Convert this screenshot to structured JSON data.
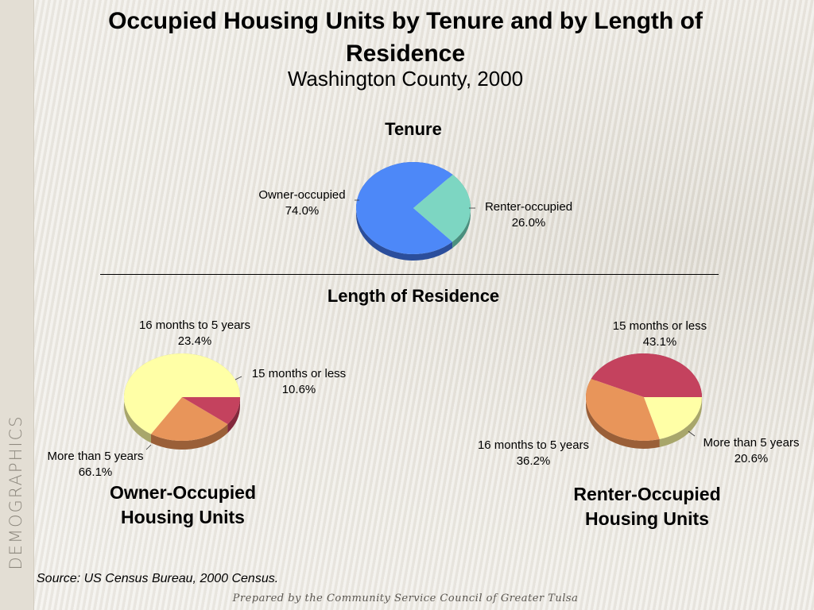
{
  "title": "Occupied Housing Units by Tenure and by Length of Residence",
  "subtitle": "Washington County, 2000",
  "side_label": "DEMOGRAPHICS",
  "source": "Source:  US Census Bureau, 2000 Census.",
  "footer": "Prepared by the Community Service Council of Greater Tulsa",
  "chart_data": [
    {
      "type": "pie",
      "title": "Tenure",
      "categories": [
        "Owner-occupied",
        "Renter-occupied"
      ],
      "values": [
        74.0,
        26.0
      ],
      "value_labels": [
        "74.0%",
        "26.0%"
      ],
      "colors": [
        "#4d88f8",
        "#7dd6c2"
      ],
      "side_colors": [
        "#2b4e9c",
        "#4a8f7e"
      ]
    },
    {
      "type": "pie",
      "section_title": "Length of Residence",
      "title": "Owner-Occupied Housing Units",
      "categories": [
        "More than 5 years",
        "16 months to 5 years",
        "15 months or less"
      ],
      "values": [
        66.1,
        23.4,
        10.6
      ],
      "value_labels": [
        "66.1%",
        "23.4%",
        "10.6%"
      ],
      "colors": [
        "#ffffa6",
        "#e8955a",
        "#c4425e"
      ],
      "side_colors": [
        "#a8a66b",
        "#9a5f38",
        "#82283c"
      ]
    },
    {
      "type": "pie",
      "title": "Renter-Occupied Housing Units",
      "categories": [
        "15 months or less",
        "16 months to 5 years",
        "More than 5 years"
      ],
      "values": [
        43.1,
        36.2,
        20.6
      ],
      "value_labels": [
        "43.1%",
        "36.2%",
        "20.6%"
      ],
      "colors": [
        "#c4425e",
        "#e8955a",
        "#ffffa6"
      ],
      "side_colors": [
        "#82283c",
        "#9a5f38",
        "#a8a66b"
      ]
    }
  ]
}
